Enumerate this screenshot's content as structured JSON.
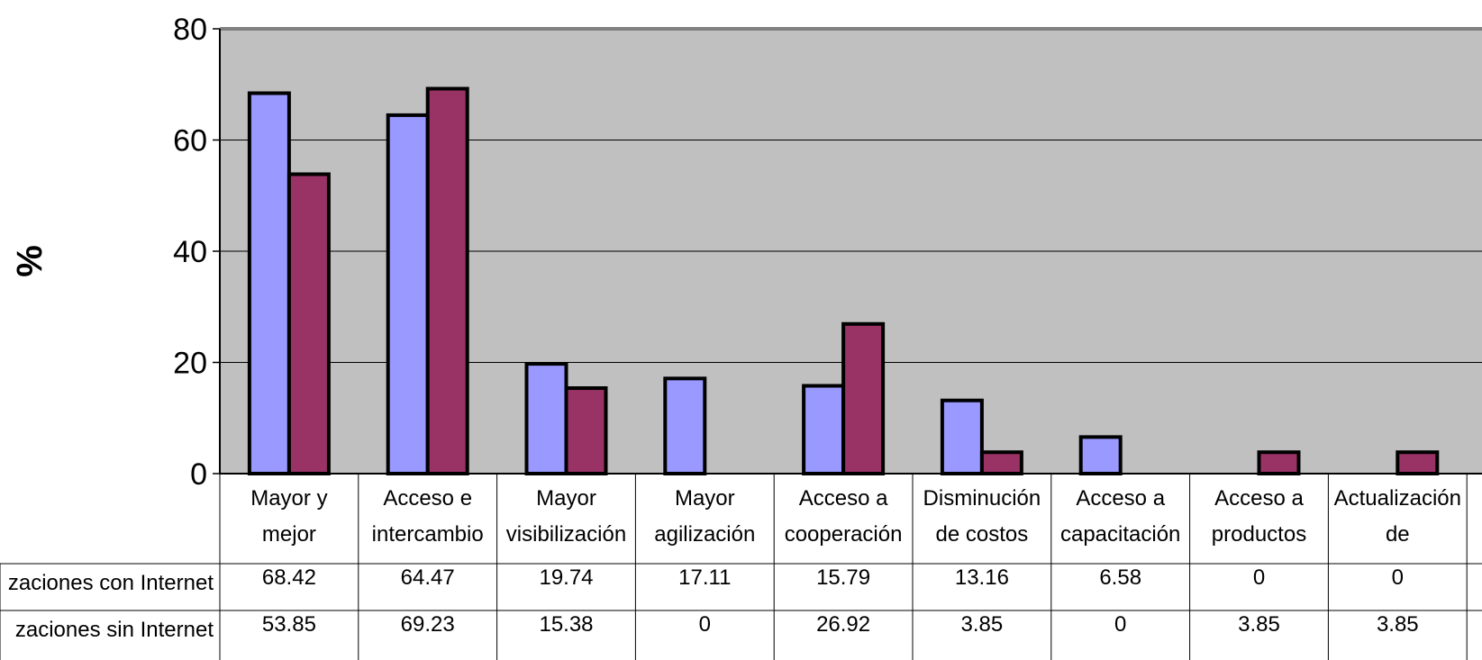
{
  "chart_data": {
    "type": "bar",
    "title": "",
    "xlabel": "",
    "ylabel": "%",
    "ylim": [
      0,
      80
    ],
    "yticks": [
      0,
      20,
      40,
      60,
      80
    ],
    "grid": true,
    "legend": "data table below chart",
    "categories": [
      [
        "Mayor y",
        "mejor"
      ],
      [
        "Acceso e",
        "intercambio"
      ],
      [
        "Mayor",
        "visibilización"
      ],
      [
        "Mayor",
        "agilización"
      ],
      [
        "Acceso a",
        "cooperación"
      ],
      [
        "Disminución",
        "de costos"
      ],
      [
        "Acceso a",
        "capacitación"
      ],
      [
        "Acceso a",
        "productos"
      ],
      [
        "Actualización",
        "de"
      ]
    ],
    "series": [
      {
        "name": "zaciones con Internet",
        "color": "#9999ff",
        "values": [
          68.42,
          64.47,
          19.74,
          17.11,
          15.79,
          13.16,
          6.58,
          0,
          0
        ],
        "labels": [
          "68.42",
          "64.47",
          "19.74",
          "17.11",
          "15.79",
          "13.16",
          "6.58",
          "0",
          "0"
        ]
      },
      {
        "name": "zaciones sin Internet",
        "color": "#993366",
        "values": [
          53.85,
          69.23,
          15.38,
          0,
          26.92,
          3.85,
          0,
          3.85,
          3.85
        ],
        "labels": [
          "53.85",
          "69.23",
          "15.38",
          "0",
          "26.92",
          "3.85",
          "0",
          "3.85",
          "3.85"
        ]
      }
    ],
    "plot_background": "#c0c0c0"
  }
}
